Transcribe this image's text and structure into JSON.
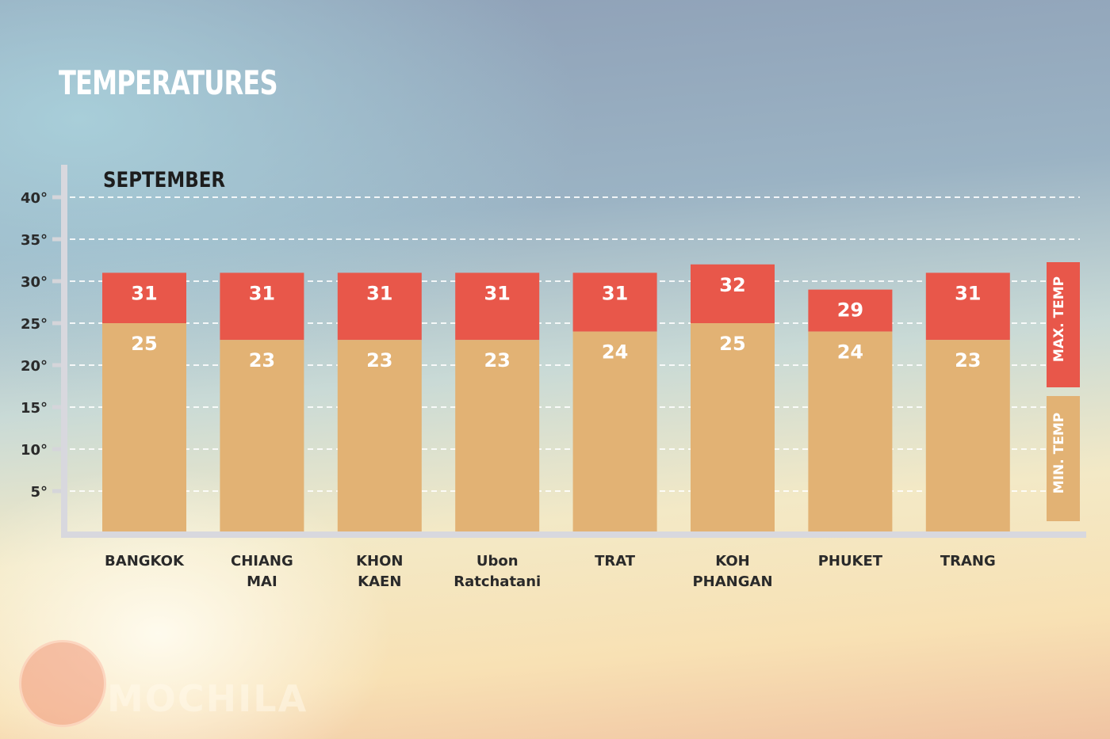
{
  "title": "TEMPERATURES",
  "logo_text": "MOCHILA",
  "chart_data": {
    "type": "bar",
    "stacked": "overlay",
    "title": "SEPTEMBER",
    "categories": [
      [
        "BANGKOK"
      ],
      [
        "CHIANG",
        "MAI"
      ],
      [
        "KHON",
        "KAEN"
      ],
      [
        "Ubon",
        "Ratchatani"
      ],
      [
        "TRAT"
      ],
      [
        "KOH",
        "PHANGAN"
      ],
      [
        "PHUKET"
      ],
      [
        "TRANG"
      ]
    ],
    "series": [
      {
        "name": "MAX. TEMP",
        "color": "#e8574a",
        "values": [
          31,
          31,
          31,
          31,
          31,
          32,
          29,
          31
        ]
      },
      {
        "name": "MIN. TEMP",
        "color": "#e2b274",
        "values": [
          25,
          23,
          23,
          23,
          24,
          25,
          24,
          23
        ]
      }
    ],
    "yticks": [
      5,
      10,
      15,
      20,
      25,
      30,
      35,
      40
    ],
    "ytick_suffix": "°",
    "ylim": [
      0,
      40
    ],
    "grid": true,
    "legend": "right"
  }
}
